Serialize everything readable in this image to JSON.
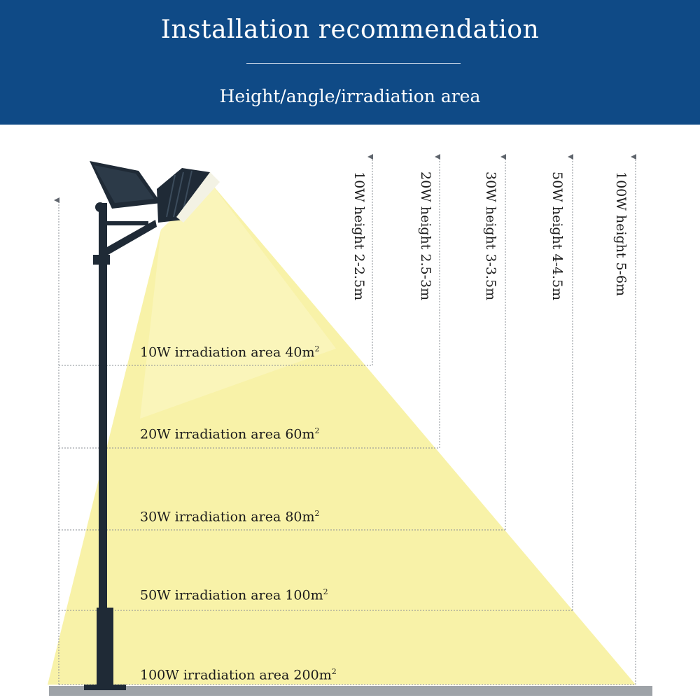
{
  "header": {
    "title": "Installation recommendation",
    "subtitle": "Height/angle/irradiation area"
  },
  "colors": {
    "header_bg": "#0f4a86",
    "light_beam": "#f8f2a8",
    "pole": "#1f2a36",
    "ground": "#9ea3a8",
    "guide_line": "#8a8f96"
  },
  "icons": {
    "lamp": "solar-flood-light-icon",
    "pole": "street-pole-icon"
  },
  "levels": [
    {
      "power": "10W",
      "height_label": "10W height 2-2.5m",
      "area_label": "10W irradiation area 40",
      "unit": "m",
      "sup": "2"
    },
    {
      "power": "20W",
      "height_label": "20W height 2.5-3m",
      "area_label": "20W irradiation area 60",
      "unit": "m",
      "sup": "2"
    },
    {
      "power": "30W",
      "height_label": "30W height 3-3.5m",
      "area_label": "30W irradiation area 80",
      "unit": "m",
      "sup": "2"
    },
    {
      "power": "50W",
      "height_label": "50W height 4-4.5m",
      "area_label": "50W irradiation area 100",
      "unit": "m",
      "sup": "2"
    },
    {
      "power": "100W",
      "height_label": "100W height 5-6m",
      "area_label": "100W irradiation area 200",
      "unit": "m",
      "sup": "2"
    }
  ]
}
